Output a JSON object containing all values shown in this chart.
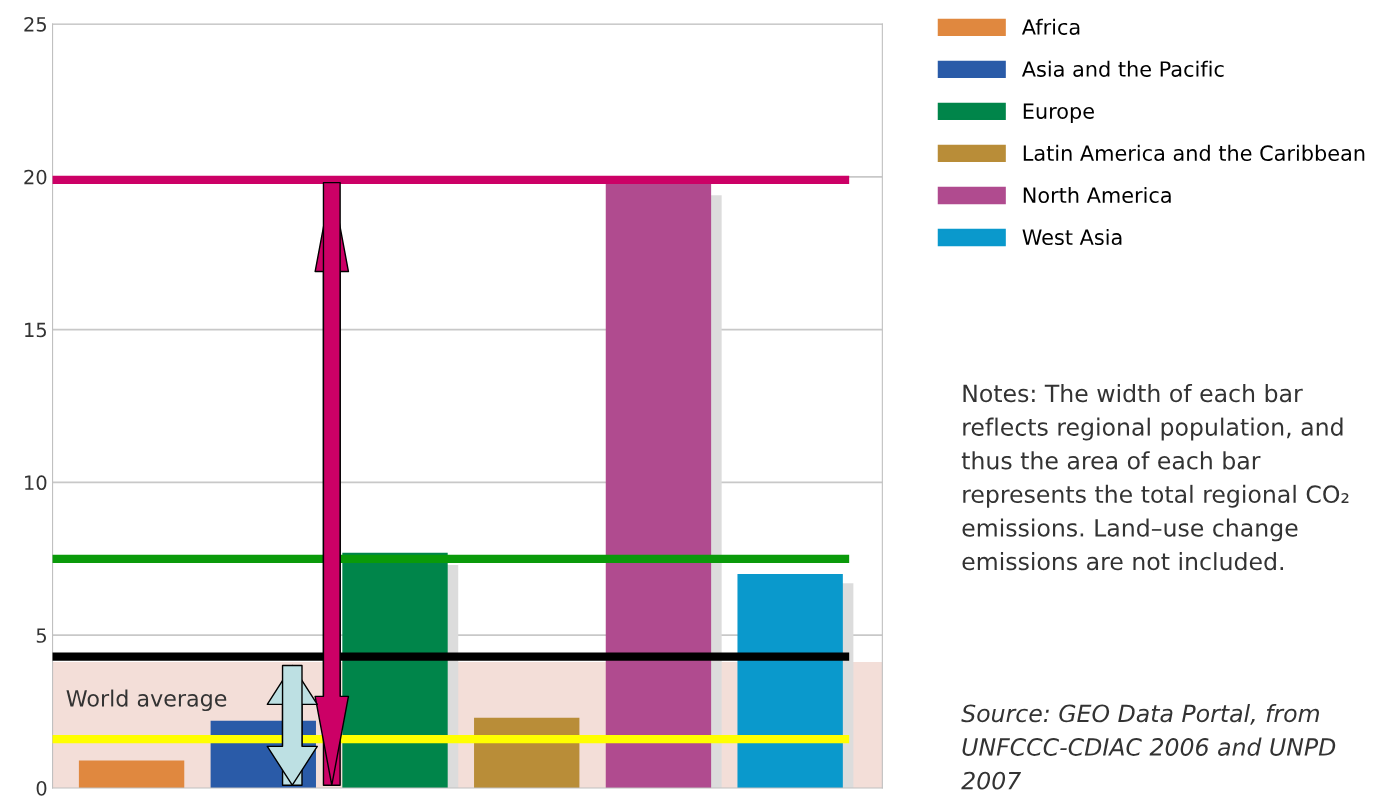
{
  "chart_data": {
    "type": "bar",
    "categories": [
      null,
      null,
      null,
      null,
      null,
      null
    ],
    "series": [
      {
        "name": "Africa",
        "color": "#e0883f",
        "values": [
          0.9,
          null,
          null,
          null,
          null,
          null
        ]
      },
      {
        "name": "Asia and the Pacific",
        "color": "#2a5ba8",
        "values": [
          null,
          2.2,
          null,
          null,
          null,
          null
        ]
      },
      {
        "name": "Europe",
        "color": "#00854a",
        "values": [
          null,
          null,
          7.7,
          null,
          null,
          null
        ]
      },
      {
        "name": "Latin America and the Caribbean",
        "color": "#b98d38",
        "values": [
          null,
          null,
          null,
          2.3,
          null,
          null
        ]
      },
      {
        "name": "North America",
        "color": "#b04b8f",
        "values": [
          null,
          null,
          null,
          null,
          19.8,
          null
        ]
      },
      {
        "name": "West Asia",
        "color": "#0a99cc",
        "values": [
          null,
          null,
          null,
          null,
          null,
          7.0
        ]
      },
      {
        "color": "#dcdcdc",
        "values": [
          null,
          null,
          7.3,
          null,
          19.4,
          6.7
        ]
      }
    ],
    "ylim": [
      0,
      25
    ],
    "yticks": [
      0,
      5,
      10,
      15,
      20,
      25
    ],
    "grid": "y",
    "legend": "top right",
    "bands": [
      {
        "axis": "y",
        "from": 0,
        "to": 4.1,
        "label": "World average",
        "color": "#f3ded8"
      }
    ],
    "ref_lines": [
      {
        "axis": "y",
        "value": 19.9,
        "color": "#cc0066"
      },
      {
        "axis": "y",
        "value": 7.5,
        "color": "#0a9a0a"
      },
      {
        "axis": "y",
        "value": 4.3,
        "color": "#000000"
      },
      {
        "axis": "y",
        "value": 1.6,
        "color": "#ffff00"
      }
    ],
    "annotations": [
      "Notes: The width of each bar reflects regional population, and thus the area of each bar represents the total regional CO₂ emissions. Land–use change emissions are not included.",
      "Source: GEO Data Portal, from UNFCCC-CDIAC 2006 and UNPD 2007"
    ]
  }
}
